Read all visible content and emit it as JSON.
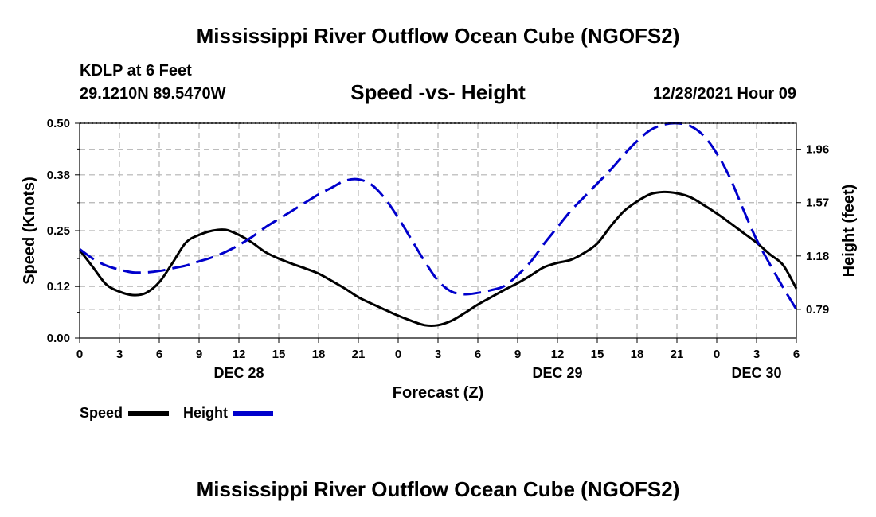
{
  "header": {
    "title": "Mississippi River Outflow Ocean Cube (NGOFS2)",
    "station": "KDLP at 6 Feet",
    "coordinates": "29.1210N  89.5470W",
    "subtitle": "Speed -vs- Height",
    "datetime": "12/28/2021 Hour 09"
  },
  "footer": {
    "title": "Mississippi River Outflow Ocean Cube (NGOFS2)"
  },
  "legend": {
    "speed_label": "Speed",
    "height_label": "Height"
  },
  "colors": {
    "speed": "#000000",
    "height": "#0000cc",
    "grid": "#b4b4b4"
  },
  "chart_data": {
    "type": "line",
    "title": "Speed -vs- Height",
    "xlabel": "Forecast (Z)",
    "ylabel": "Speed (Knots)",
    "y2label": "Height (feet)",
    "x_unit": "hours since 00Z Dec 28",
    "xlim": [
      0,
      54
    ],
    "ylim": [
      0,
      0.5
    ],
    "y2lim": [
      0.58,
      2.15
    ],
    "x_ticks": [
      0,
      3,
      6,
      9,
      12,
      15,
      18,
      21,
      24,
      27,
      30,
      33,
      36,
      39,
      42,
      45,
      48,
      51,
      54
    ],
    "x_tick_labels": [
      "0",
      "3",
      "6",
      "9",
      "12",
      "15",
      "18",
      "21",
      "0",
      "3",
      "6",
      "9",
      "12",
      "15",
      "18",
      "21",
      "0",
      "3",
      "6"
    ],
    "date_labels": [
      {
        "x": 12,
        "label": "DEC 28"
      },
      {
        "x": 36,
        "label": "DEC 29"
      },
      {
        "x": 51,
        "label": "DEC 30"
      }
    ],
    "y_ticks": [
      0.0,
      0.12,
      0.25,
      0.38,
      0.5
    ],
    "y_tick_labels": [
      "0.00",
      "0.12",
      "0.25",
      "0.38",
      "0.50"
    ],
    "y2_ticks": [
      0.79,
      1.18,
      1.57,
      1.96
    ],
    "y2_tick_labels": [
      "0.79",
      "1.18",
      "1.57",
      "1.96"
    ],
    "grid": true,
    "series": [
      {
        "name": "Speed",
        "axis": "left",
        "style": "solid",
        "x": [
          0,
          1,
          2,
          3,
          4,
          5,
          6,
          7,
          8,
          9,
          10,
          11,
          12,
          13,
          14,
          15,
          16,
          17,
          18,
          19,
          20,
          21,
          22,
          23,
          24,
          25,
          26,
          27,
          28,
          29,
          30,
          31,
          32,
          33,
          34,
          35,
          36,
          37,
          38,
          39,
          40,
          41,
          42,
          43,
          44,
          45,
          46,
          47,
          48,
          49,
          50,
          51,
          52,
          53,
          54
        ],
        "values": [
          0.205,
          0.165,
          0.125,
          0.108,
          0.1,
          0.105,
          0.13,
          0.175,
          0.222,
          0.24,
          0.25,
          0.252,
          0.24,
          0.222,
          0.2,
          0.185,
          0.173,
          0.162,
          0.15,
          0.133,
          0.115,
          0.095,
          0.08,
          0.066,
          0.052,
          0.04,
          0.03,
          0.03,
          0.04,
          0.058,
          0.078,
          0.095,
          0.112,
          0.128,
          0.146,
          0.165,
          0.175,
          0.182,
          0.198,
          0.22,
          0.26,
          0.295,
          0.318,
          0.335,
          0.34,
          0.337,
          0.328,
          0.31,
          0.29,
          0.268,
          0.245,
          0.222,
          0.195,
          0.17,
          0.115
        ]
      },
      {
        "name": "Height",
        "axis": "right",
        "style": "dashed",
        "x": [
          0,
          1,
          2,
          3,
          4,
          5,
          6,
          7,
          8,
          9,
          10,
          11,
          12,
          13,
          14,
          15,
          16,
          17,
          18,
          19,
          20,
          21,
          22,
          23,
          24,
          25,
          26,
          27,
          28,
          29,
          30,
          31,
          32,
          33,
          34,
          35,
          36,
          37,
          38,
          39,
          40,
          41,
          42,
          43,
          44,
          45,
          46,
          47,
          48,
          49,
          50,
          51,
          52,
          53,
          54
        ],
        "values": [
          1.23,
          1.16,
          1.11,
          1.08,
          1.06,
          1.06,
          1.07,
          1.09,
          1.11,
          1.14,
          1.17,
          1.21,
          1.26,
          1.32,
          1.39,
          1.45,
          1.51,
          1.57,
          1.63,
          1.68,
          1.73,
          1.74,
          1.7,
          1.6,
          1.46,
          1.3,
          1.14,
          1.0,
          0.92,
          0.9,
          0.91,
          0.93,
          0.96,
          1.04,
          1.14,
          1.27,
          1.39,
          1.51,
          1.61,
          1.71,
          1.81,
          1.92,
          2.02,
          2.1,
          2.14,
          2.15,
          2.13,
          2.06,
          1.93,
          1.75,
          1.52,
          1.3,
          1.12,
          0.95,
          0.79
        ]
      }
    ]
  }
}
